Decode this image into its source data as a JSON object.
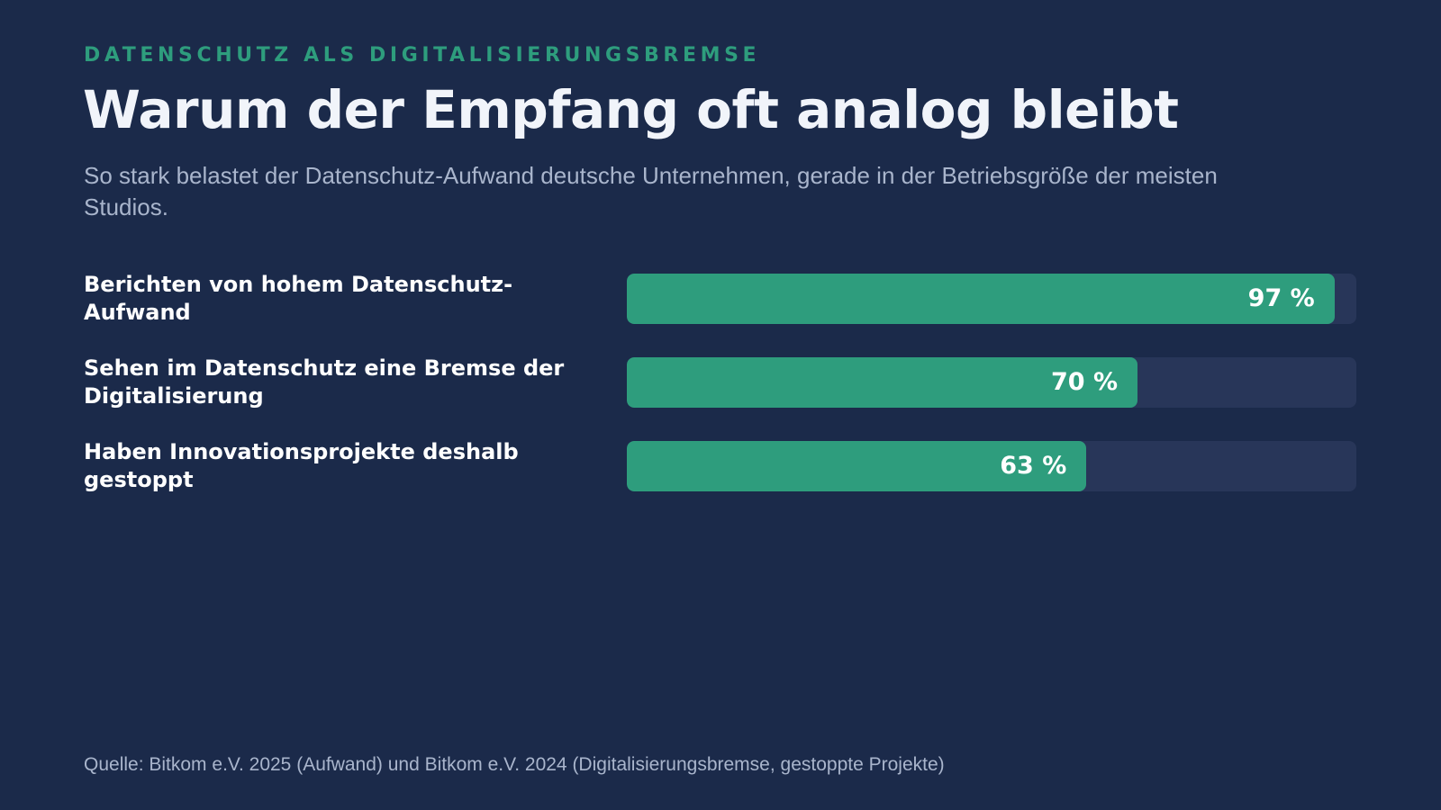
{
  "eyebrow": "DATENSCHUTZ ALS DIGITALISIERUNGSBREMSE",
  "title": "Warum der Empfang oft analog bleibt",
  "subtitle": "So stark belastet der Datenschutz-Aufwand deutsche Unternehmen, gerade in der Betriebsgröße der meisten Studios.",
  "source": "Quelle: Bitkom e.V. 2025 (Aufwand) und Bitkom e.V. 2024 (Digitalisierungsbremse, gestoppte Projekte)",
  "colors": {
    "background": "#1b2a4a",
    "accent": "#2e9d7d",
    "track": "#283659"
  },
  "chart_data": {
    "type": "bar",
    "orientation": "horizontal",
    "categories": [
      "Berichten von hohem Datenschutz-Aufwand",
      "Sehen im Datenschutz eine Bremse der Digitalisierung",
      "Haben Innovationsprojekte deshalb gestoppt"
    ],
    "values": [
      97,
      70,
      63
    ],
    "value_labels": [
      "97 %",
      "70 %",
      "63 %"
    ],
    "unit": "%",
    "xlim": [
      0,
      100
    ],
    "grid": false,
    "legend": "none"
  }
}
